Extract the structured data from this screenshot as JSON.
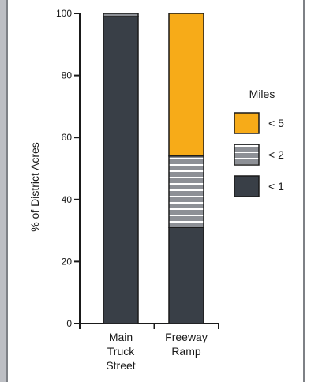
{
  "chart_data": {
    "type": "bar",
    "stacked": true,
    "categories": [
      "Main Truck Street",
      "Freeway Ramp"
    ],
    "category_lines": [
      [
        "Main",
        "Truck",
        "Street"
      ],
      [
        "Freeway",
        "Ramp"
      ]
    ],
    "series": [
      {
        "name": "< 1",
        "values": [
          99,
          31
        ],
        "color": "#393f47",
        "pattern": "solid"
      },
      {
        "name": "< 2",
        "values": [
          0,
          23
        ],
        "color": "#8d9096",
        "pattern": "horizontal-stripes"
      },
      {
        "name": "< 5",
        "values": [
          1,
          46
        ],
        "color": "#f7ab18",
        "pattern": "solid"
      }
    ],
    "stack_colors": {
      "cat0_top": "#8d9096"
    },
    "ylabel": "% of District Acres",
    "xlabel": "",
    "ylim": [
      0,
      100
    ],
    "yticks": [
      0,
      20,
      40,
      60,
      80,
      100
    ],
    "grid": false,
    "legend": {
      "title": "Miles",
      "placement": "right",
      "order": [
        "< 5",
        "< 2",
        "< 1"
      ]
    },
    "frame_color": "#bdbfc4"
  }
}
